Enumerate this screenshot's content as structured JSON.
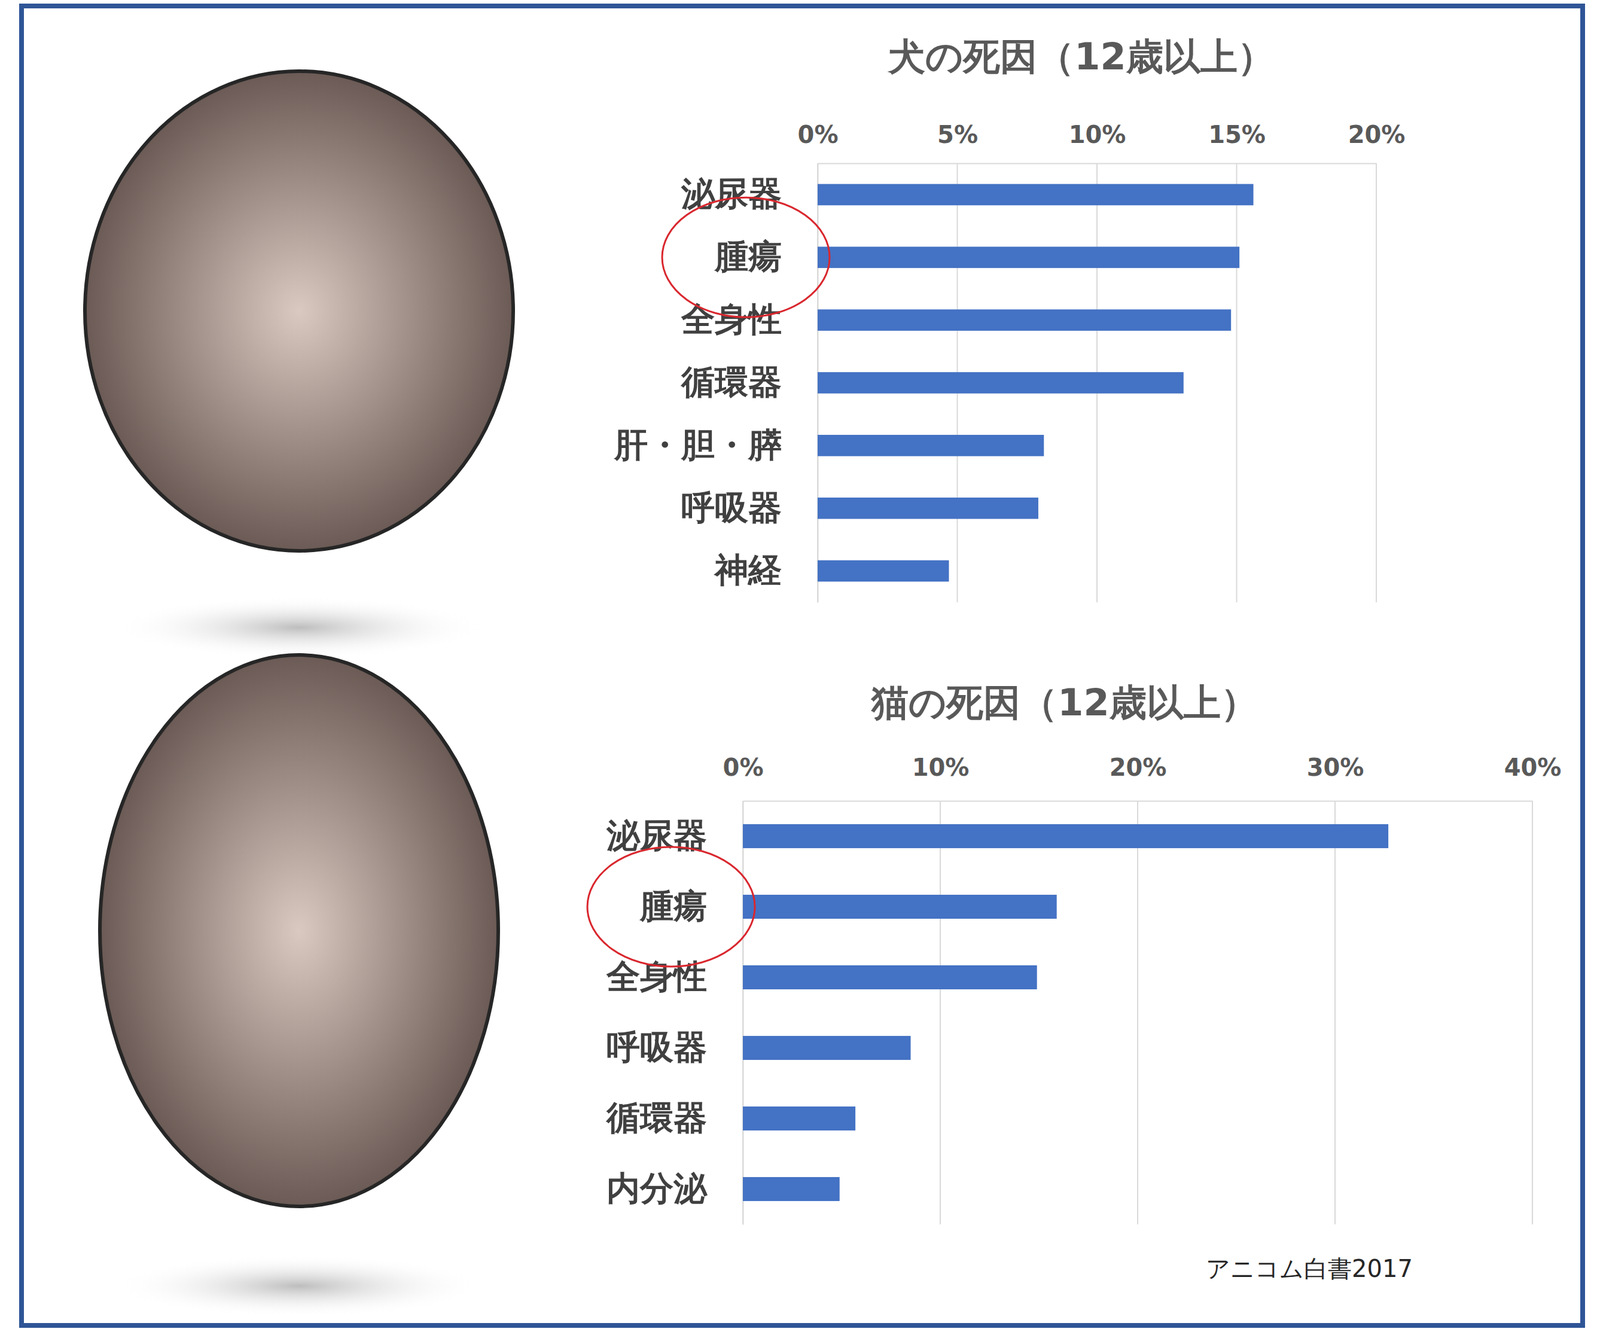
{
  "chart_data": [
    {
      "type": "bar",
      "orientation": "horizontal",
      "title": "犬の死因（12歳以上）",
      "categories": [
        "泌尿器",
        "腫瘍",
        "全身性",
        "循環器",
        "肝・胆・膵",
        "呼吸器",
        "神経"
      ],
      "values": [
        15.6,
        15.1,
        14.8,
        13.1,
        8.1,
        7.9,
        4.7
      ],
      "color": "#4472c4",
      "xlim": [
        0,
        20
      ],
      "xticks": [
        {
          "value": 0,
          "label": "0%"
        },
        {
          "value": 5,
          "label": "5%"
        },
        {
          "value": 10,
          "label": "10%"
        },
        {
          "value": 15,
          "label": "15%"
        },
        {
          "value": 20,
          "label": "20%"
        }
      ],
      "grid": true
    },
    {
      "type": "bar",
      "orientation": "horizontal",
      "title": "猫の死因（12歳以上）",
      "categories": [
        "泌尿器",
        "腫瘍",
        "全身性",
        "呼吸器",
        "循環器",
        "内分泌"
      ],
      "values": [
        32.7,
        15.9,
        14.9,
        8.5,
        5.7,
        4.9
      ],
      "color": "#4472c4",
      "xlim": [
        0,
        40
      ],
      "xticks": [
        {
          "value": 0,
          "label": "0%"
        },
        {
          "value": 10,
          "label": "10%"
        },
        {
          "value": 20,
          "label": "20%"
        },
        {
          "value": 30,
          "label": "30%"
        },
        {
          "value": 40,
          "label": "40%"
        }
      ],
      "grid": true
    }
  ],
  "source": "アニコム白書2017"
}
